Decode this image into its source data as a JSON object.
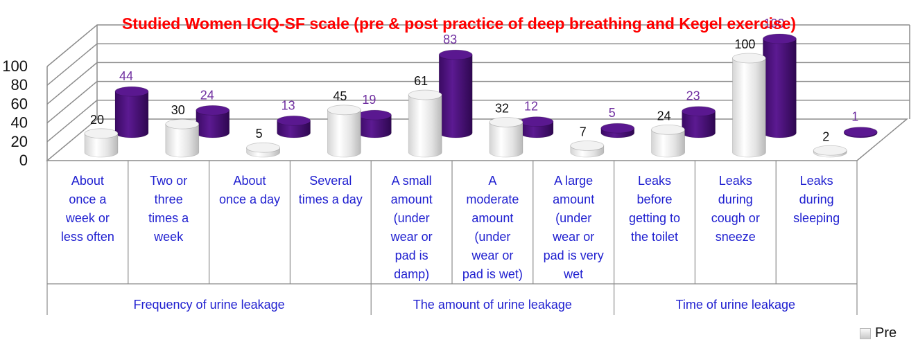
{
  "chart_data": {
    "type": "bar",
    "title": "Studied Women ICIQ-SF scale (pre & post practice of deep breathing and Kegel exercise)",
    "ylim": [
      0,
      100
    ],
    "y_ticks": [
      "0",
      "20",
      "40",
      "60",
      "80",
      "100"
    ],
    "categories": [
      "About once a week or less often",
      "Two or three times a week",
      "About once a day",
      "Several times a day",
      "A small amount (under wear or pad is damp)",
      "A moderate amount (under wear or pad is wet)",
      "A large amount (under wear or pad is very wet",
      "Leaks before getting to the toilet",
      "Leaks during cough or sneeze",
      "Leaks during sleeping"
    ],
    "category_lines": [
      [
        "About",
        "once a",
        "week or",
        "less often"
      ],
      [
        "Two or",
        "three",
        "times a",
        "week"
      ],
      [
        "About",
        "once a day"
      ],
      [
        "Several",
        "times a day"
      ],
      [
        "A small",
        "amount",
        "(under",
        "wear or",
        "pad is",
        "damp)"
      ],
      [
        "A",
        "moderate",
        "amount",
        "(under",
        "wear or",
        "pad is wet)"
      ],
      [
        "A large",
        "amount",
        "(under",
        "wear or",
        "pad is very",
        "wet"
      ],
      [
        "Leaks",
        "before",
        "getting to",
        "the toilet"
      ],
      [
        "Leaks",
        "during",
        "cough or",
        "sneeze"
      ],
      [
        "Leaks",
        "during",
        "sleeping"
      ]
    ],
    "groups": [
      {
        "label": "Frequency of urine leakage",
        "span": 4
      },
      {
        "label": "The amount of urine leakage",
        "span": 3
      },
      {
        "label": "Time of urine leakage",
        "span": 3
      }
    ],
    "series": [
      {
        "name": "Pre",
        "values": [
          20,
          30,
          5,
          45,
          61,
          32,
          7,
          24,
          100,
          2
        ],
        "color": "#e6e6e6",
        "label_color": "#111111"
      },
      {
        "values": [
          44,
          24,
          13,
          19,
          83,
          12,
          5,
          23,
          100,
          1
        ],
        "color": "#4b0f7c",
        "label_color": "#7030a0"
      }
    ],
    "legend": {
      "position": "bottom-right",
      "entries": [
        "Pre"
      ]
    },
    "style": {
      "title_color": "#ff0000",
      "grid": true,
      "bar_shape": "3d-cylinder"
    }
  }
}
